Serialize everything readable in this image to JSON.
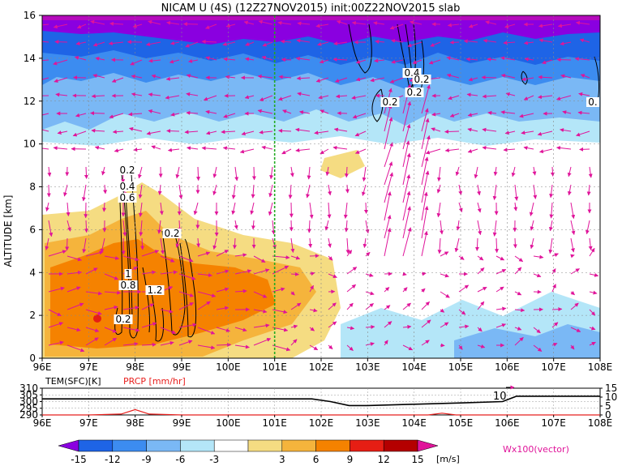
{
  "title": "NICAM U (4S) (12Z27NOV2015) init:00Z22NOV2015 slab",
  "colors": {
    "neg_deep": "#8a00e0",
    "neg_strong": "#1e64e6",
    "neg_mid": "#3c8cf0",
    "neg_light": "#7ab8f5",
    "neg_pale": "#b4e6f8",
    "pos_pale": "#f5dc82",
    "pos_light": "#f5b43c",
    "pos_mid": "#f58200",
    "pos_strong": "#e61e14",
    "pos_deep": "#b40000",
    "vector": "#e0149a",
    "marker": "#22aa22"
  },
  "chart_data": [
    {
      "type": "heatmap",
      "panel": "main",
      "ylabel": "ALTITUDE [km]",
      "xlim": [
        96,
        108
      ],
      "ylim": [
        0,
        16
      ],
      "x_ticks": [
        "96E",
        "97E",
        "98E",
        "99E",
        "100E",
        "101E",
        "102E",
        "103E",
        "104E",
        "105E",
        "106E",
        "107E",
        "108E"
      ],
      "y_ticks": [
        "0",
        "2",
        "4",
        "6",
        "8",
        "10",
        "12",
        "14",
        "16"
      ],
      "grid": true,
      "marker_line_x": 101,
      "contour_labels": [
        "0.2",
        "0.4",
        "0.6",
        "0.2",
        "1",
        "0.8",
        "1.2",
        "0.2",
        "0.4",
        "0.2",
        "0.2",
        "0.2",
        "0."
      ],
      "vector_label": "Wx100(vector)"
    },
    {
      "type": "line",
      "panel": "surface",
      "series": [
        {
          "name": "TEM(SFC)[K]",
          "x": [
            96,
            97,
            98,
            99,
            100,
            101,
            101.8,
            102.2,
            102.6,
            103,
            104,
            105,
            105.9,
            106.2,
            107,
            108
          ],
          "y": [
            302,
            302,
            302,
            302,
            302,
            302,
            302,
            300,
            297,
            297,
            298,
            299,
            300,
            304,
            304,
            304
          ]
        },
        {
          "name": "PRCP [mm/hr]",
          "x": [
            96,
            97,
            97.7,
            98,
            98.3,
            99,
            102,
            104.3,
            104.6,
            104.9,
            106,
            108
          ],
          "y": [
            0,
            0,
            0.5,
            3,
            0.5,
            0,
            0,
            0,
            1,
            0,
            0,
            0
          ]
        }
      ],
      "left_ticks": [
        "310",
        "305",
        "300",
        "295",
        "290"
      ],
      "right_ticks": [
        "15",
        "10",
        "5",
        "0"
      ],
      "annotation": "10",
      "x_ticks": [
        "96E",
        "97E",
        "98E",
        "99E",
        "100E",
        "101E",
        "102E",
        "103E",
        "104E",
        "105E",
        "106E",
        "107E",
        "108E"
      ]
    },
    {
      "type": "colorbar",
      "ticks": [
        "-15",
        "-12",
        "-9",
        "-6",
        "-3",
        "3",
        "6",
        "9",
        "12",
        "15"
      ],
      "unit": "[m/s]"
    }
  ]
}
